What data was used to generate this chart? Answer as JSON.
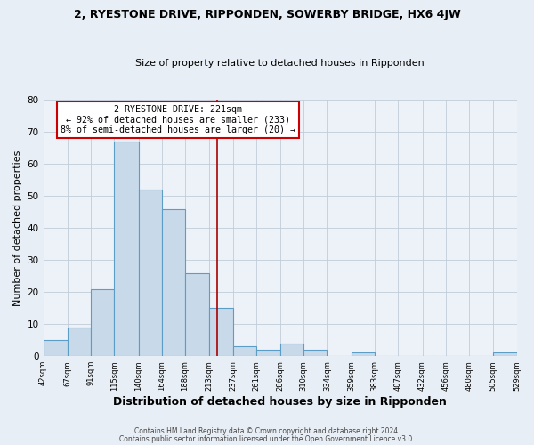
{
  "title": "2, RYESTONE DRIVE, RIPPONDEN, SOWERBY BRIDGE, HX6 4JW",
  "subtitle": "Size of property relative to detached houses in Ripponden",
  "xlabel": "Distribution of detached houses by size in Ripponden",
  "ylabel": "Number of detached properties",
  "bar_color": "#c8daea",
  "bar_edge_color": "#5b9dc4",
  "annotation_line1": "2 RYESTONE DRIVE: 221sqm",
  "annotation_line2": "← 92% of detached houses are smaller (233)",
  "annotation_line3": "8% of semi-detached houses are larger (20) →",
  "vline_x": 221,
  "vline_color": "#aa0000",
  "bin_edges": [
    42,
    67,
    91,
    115,
    140,
    164,
    188,
    213,
    237,
    261,
    286,
    310,
    334,
    359,
    383,
    407,
    432,
    456,
    480,
    505,
    529
  ],
  "bin_counts": [
    5,
    9,
    21,
    67,
    52,
    46,
    26,
    15,
    3,
    2,
    4,
    2,
    0,
    1,
    0,
    0,
    0,
    0,
    0,
    1
  ],
  "tick_labels": [
    "42sqm",
    "67sqm",
    "91sqm",
    "115sqm",
    "140sqm",
    "164sqm",
    "188sqm",
    "213sqm",
    "237sqm",
    "261sqm",
    "286sqm",
    "310sqm",
    "334sqm",
    "359sqm",
    "383sqm",
    "407sqm",
    "432sqm",
    "456sqm",
    "480sqm",
    "505sqm",
    "529sqm"
  ],
  "ylim": [
    0,
    80
  ],
  "yticks": [
    0,
    10,
    20,
    30,
    40,
    50,
    60,
    70,
    80
  ],
  "footer1": "Contains HM Land Registry data © Crown copyright and database right 2024.",
  "footer2": "Contains public sector information licensed under the Open Government Licence v3.0.",
  "bg_color": "#e8eef5",
  "plot_bg_color": "#edf2f8",
  "grid_color": "#c0ccd8"
}
